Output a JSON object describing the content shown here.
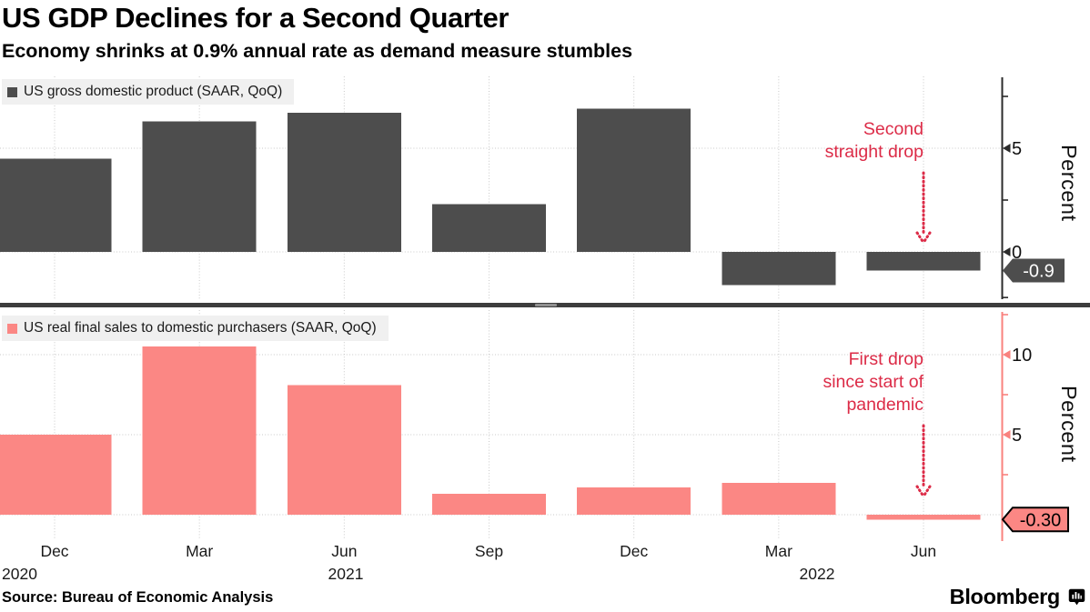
{
  "header": {
    "title": "US GDP Declines for a Second Quarter",
    "subtitle": "Economy shrinks at 0.9% annual rate as demand measure stumbles"
  },
  "chart_data": [
    {
      "type": "bar",
      "legend": "US gross domestic product (SAAR, QoQ)",
      "categories": [
        "Dec 2020",
        "Mar 2021",
        "Jun 2021",
        "Sep 2021",
        "Dec 2021",
        "Mar 2022",
        "Jun 2022"
      ],
      "values": [
        4.5,
        6.3,
        6.7,
        2.3,
        6.9,
        -1.6,
        -0.9
      ],
      "bar_color": "#4d4d4d",
      "axis_color": "#2b2b2b",
      "ylabel": "Percent",
      "ylim": [
        -2.5,
        8.7
      ],
      "yticks_labeled": [
        {
          "value": 5,
          "label": "5"
        },
        {
          "value": 0,
          "label": "0"
        }
      ],
      "yticks_minor": [
        7.5,
        2.5,
        -2.2
      ],
      "gridlines_h": [
        5,
        0
      ],
      "grid": true,
      "legend_position": "top-left",
      "annotation": {
        "text": "Second\nstraight drop",
        "color": "#dc2b47"
      },
      "value_tag": {
        "label": "-0.9",
        "value": -0.9,
        "bg": "#4d4d4d",
        "text_color": "#ffffff",
        "border": "none"
      }
    },
    {
      "type": "bar",
      "legend": "US real final sales to domestic purchasers (SAAR, QoQ)",
      "categories": [
        "Dec 2020",
        "Mar 2021",
        "Jun 2021",
        "Sep 2021",
        "Dec 2021",
        "Mar 2022",
        "Jun 2022"
      ],
      "values": [
        5.0,
        10.5,
        8.1,
        1.3,
        1.7,
        2.0,
        -0.3
      ],
      "bar_color": "#fb8784",
      "axis_color": "#f9827e",
      "ylabel": "Percent",
      "ylim": [
        -1.6,
        12.9
      ],
      "yticks_labeled": [
        {
          "value": 10,
          "label": "10"
        },
        {
          "value": 5,
          "label": "5"
        }
      ],
      "yticks_minor": [
        12.5,
        7.5,
        2.5
      ],
      "gridlines_h": [
        10,
        5,
        0
      ],
      "grid": true,
      "legend_position": "top-left",
      "annotation": {
        "text": "First drop\nsince start of\npandemic",
        "color": "#dc2b47"
      },
      "value_tag": {
        "label": "-0.30",
        "value": -0.3,
        "bg": "#fb8784",
        "text_color": "#000000",
        "border": "#000000"
      }
    }
  ],
  "xaxis": {
    "quarter_labels": [
      "Dec",
      "Mar",
      "Jun",
      "Sep",
      "Dec",
      "Mar",
      "Jun"
    ],
    "year_labels": [
      "2020",
      "2021",
      "2022"
    ]
  },
  "footer": {
    "source": "Source: Bureau of Economic Analysis",
    "brand": "Bloomberg"
  }
}
